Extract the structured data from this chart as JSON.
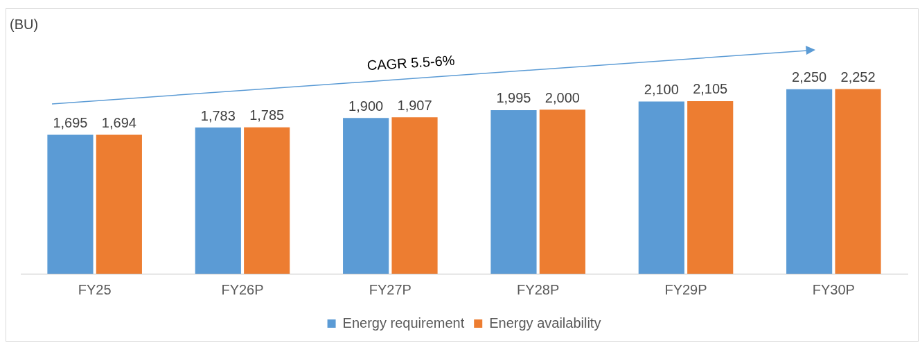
{
  "chart_data": {
    "type": "bar",
    "ylabel": "(BU)",
    "categories": [
      "FY25",
      "FY26P",
      "FY27P",
      "FY28P",
      "FY29P",
      "FY30P"
    ],
    "series": [
      {
        "name": "Energy requirement",
        "color": "#5b9bd5",
        "values": [
          1695,
          1783,
          1900,
          1995,
          2100,
          2250
        ],
        "value_labels": [
          "1,695",
          "1,783",
          "1,900",
          "1,995",
          "2,100",
          "2,250"
        ]
      },
      {
        "name": "Energy availability",
        "color": "#ed7d31",
        "values": [
          1694,
          1785,
          1907,
          2000,
          2105,
          2252
        ],
        "value_labels": [
          "1,694",
          "1,785",
          "1,907",
          "2,000",
          "2,105",
          "2,252"
        ]
      }
    ],
    "tick_labels": "x",
    "grid": false,
    "legend": "bottom",
    "annotations": [
      "CAGR 5.5-6%"
    ]
  }
}
